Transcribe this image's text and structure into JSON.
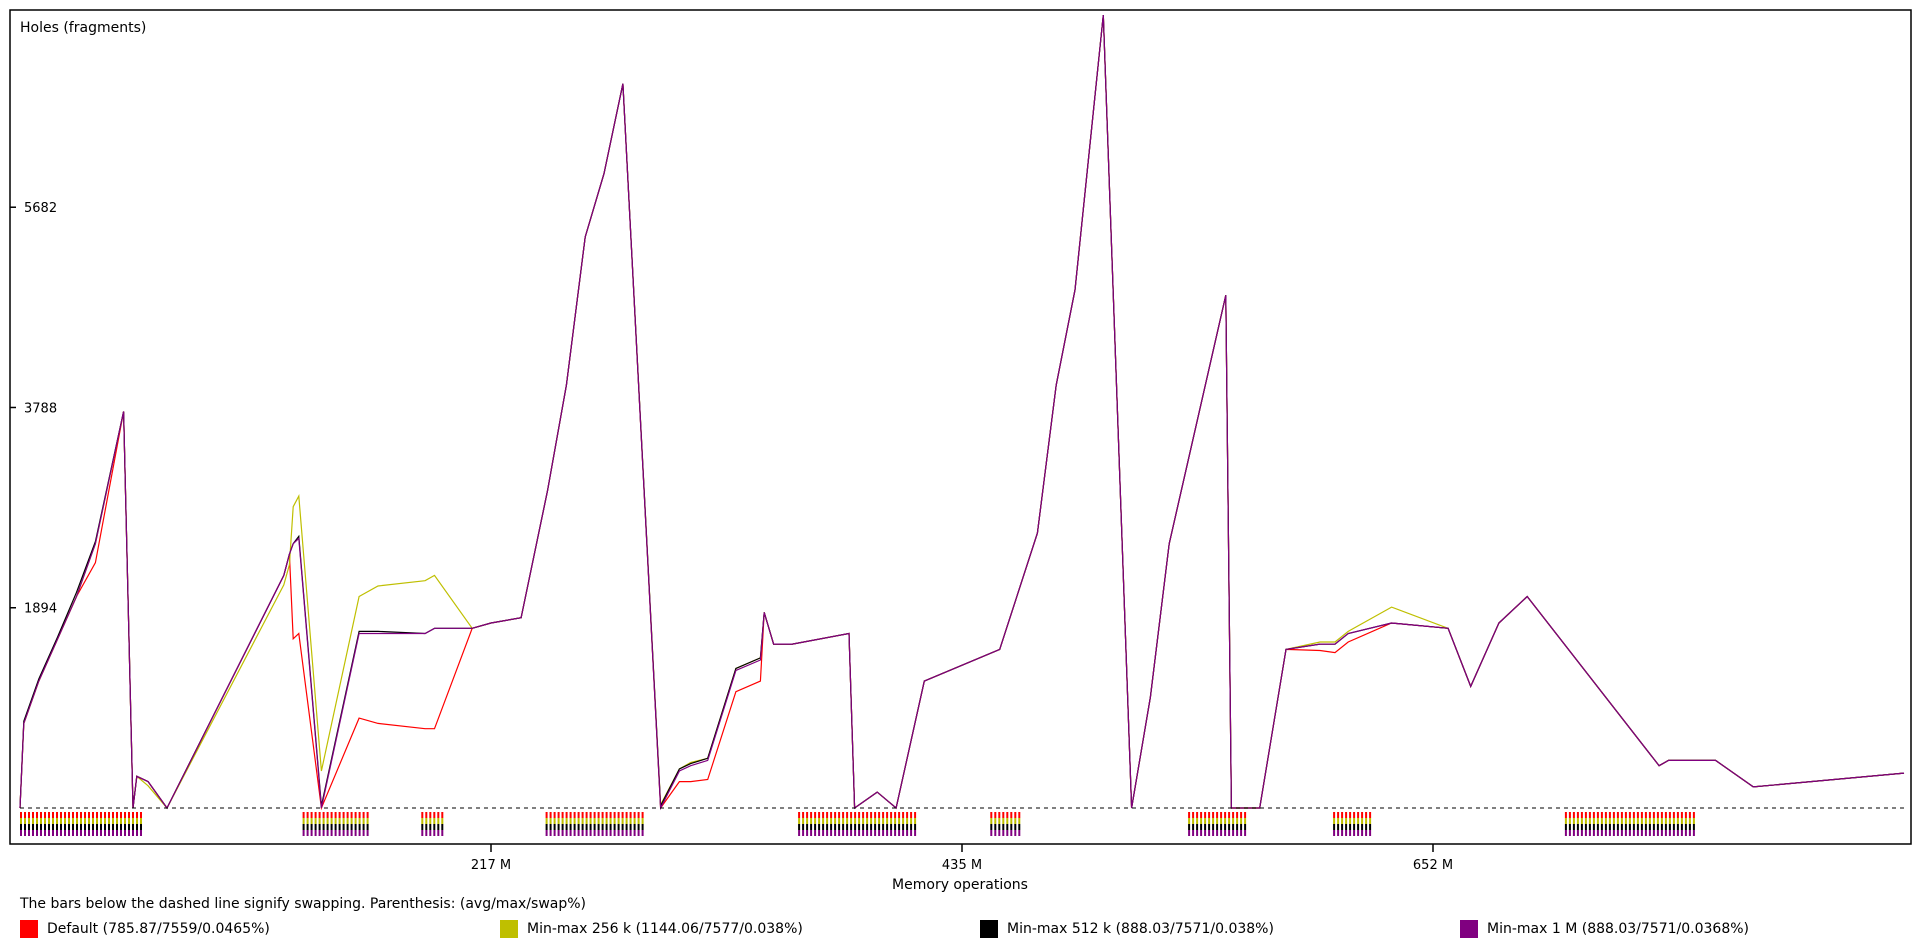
{
  "chart_data": {
    "type": "line",
    "title": "",
    "ylabel": "Holes (fragments)",
    "xlabel": "Memory operations",
    "ylim": [
      0,
      7500
    ],
    "xlim": [
      0,
      1000
    ],
    "y_ticks": [
      {
        "value": 1894,
        "label": "1894"
      },
      {
        "value": 3788,
        "label": "3788"
      },
      {
        "value": 5682,
        "label": "5682"
      }
    ],
    "x_ticks": [
      {
        "value": 250,
        "label": "217 M"
      },
      {
        "value": 500,
        "label": "435 M"
      },
      {
        "value": 750,
        "label": "652 M"
      }
    ],
    "grid": false,
    "legend_placement": "bottom",
    "note": "The bars below the dashed line signify swapping. Parenthesis: (avg/max/swap%)",
    "series": [
      {
        "name": "Default (785.87/7559/0.0465%)",
        "color": "#ff0000",
        "offsets": [
          0,
          0,
          0,
          0,
          0,
          -180,
          0,
          0,
          0,
          0,
          0,
          0,
          0,
          -900,
          -900,
          -800,
          -800,
          -850,
          -900,
          -950,
          0,
          0,
          0,
          0,
          0,
          0,
          0,
          0,
          -250,
          -100,
          -150,
          -180,
          -200,
          -200,
          0,
          0,
          0,
          0,
          0,
          0,
          0,
          0,
          0,
          0,
          0,
          0,
          0,
          0,
          0,
          0,
          0,
          0,
          0,
          0,
          -60,
          -80,
          -80,
          0,
          0,
          0,
          0,
          0,
          0,
          0
        ]
      },
      {
        "name": "Min-max 256 k (1144.06/7577/0.038%)",
        "color": "#bfbf00",
        "offsets": [
          0,
          0,
          0,
          0,
          0,
          0,
          0,
          0,
          0,
          -40,
          -80,
          -90,
          -100,
          350,
          400,
          350,
          350,
          450,
          500,
          500,
          0,
          0,
          0,
          0,
          0,
          0,
          0,
          0,
          30,
          20,
          30,
          20,
          20,
          20,
          0,
          0,
          0,
          0,
          0,
          0,
          0,
          0,
          0,
          0,
          0,
          0,
          0,
          0,
          0,
          0,
          0,
          0,
          0,
          0,
          20,
          20,
          20,
          150,
          0,
          0,
          0,
          0,
          0,
          0
        ]
      },
      {
        "name": "Min-max 512 k (888.03/7571/0.038%)",
        "color": "#000000",
        "offsets": [
          0,
          20,
          20,
          20,
          40,
          20,
          0,
          0,
          0,
          0,
          0,
          0,
          0,
          0,
          20,
          20,
          20,
          20,
          0,
          0,
          0,
          0,
          0,
          0,
          0,
          0,
          0,
          0,
          20,
          20,
          20,
          20,
          20,
          20,
          0,
          0,
          0,
          0,
          0,
          0,
          0,
          0,
          0,
          0,
          0,
          0,
          0,
          0,
          0,
          0,
          0,
          0,
          0,
          0,
          0,
          0,
          0,
          0,
          0,
          0,
          0,
          0,
          0,
          0
        ]
      },
      {
        "name": "Min-max 1 M (888.03/7571/0.0368%)",
        "color": "#800080",
        "offsets": [
          0,
          0,
          0,
          0,
          0,
          0,
          0,
          0,
          0,
          0,
          0,
          0,
          0,
          0,
          0,
          0,
          0,
          0,
          0,
          0,
          0,
          0,
          0,
          0,
          0,
          0,
          0,
          0,
          0,
          0,
          0,
          0,
          0,
          0,
          0,
          0,
          0,
          0,
          0,
          0,
          0,
          0,
          0,
          0,
          0,
          0,
          0,
          0,
          0,
          0,
          0,
          0,
          0,
          0,
          0,
          0,
          0,
          0,
          0,
          0,
          0,
          0,
          0,
          0
        ]
      }
    ],
    "base_curve": {
      "x": [
        0,
        2,
        10,
        20,
        30,
        40,
        55,
        60,
        62,
        68,
        78,
        140,
        143,
        145,
        148,
        160,
        180,
        190,
        215,
        220,
        240,
        250,
        266,
        280,
        290,
        300,
        310,
        320,
        340,
        350,
        356,
        365,
        380,
        393,
        395,
        400,
        410,
        440,
        443,
        455,
        465,
        480,
        520,
        540,
        550,
        560,
        575,
        590,
        600,
        610,
        640,
        643,
        658,
        672,
        690,
        698,
        705,
        728,
        758,
        770,
        785,
        800,
        870,
        875,
        900,
        920,
        1000
      ],
      "y": [
        0,
        800,
        1200,
        1600,
        2000,
        2500,
        3750,
        0,
        300,
        250,
        0,
        2200,
        2400,
        2500,
        2550,
        0,
        1650,
        1650,
        1650,
        1700,
        1700,
        1750,
        1800,
        3000,
        4000,
        5400,
        6000,
        6850,
        0,
        350,
        400,
        450,
        1300,
        1400,
        1850,
        1550,
        1550,
        1650,
        0,
        150,
        0,
        1200,
        1500,
        2600,
        4000,
        4900,
        7500,
        0,
        1050,
        2500,
        4850,
        0,
        0,
        1500,
        1550,
        1550,
        1650,
        1750,
        1700,
        1150,
        1750,
        2000,
        400,
        450,
        450,
        200,
        330
      ]
    },
    "swap_segments": [
      [
        0,
        65
      ],
      [
        150,
        185
      ],
      [
        213,
        225
      ],
      [
        279,
        330
      ],
      [
        413,
        475
      ],
      [
        515,
        530
      ],
      [
        620,
        650
      ],
      [
        697,
        717
      ],
      [
        820,
        890
      ]
    ],
    "gaps": [
      [
        60,
        62
      ],
      [
        140,
        142
      ],
      [
        328,
        331
      ],
      [
        440,
        444
      ],
      [
        640,
        644
      ]
    ]
  }
}
